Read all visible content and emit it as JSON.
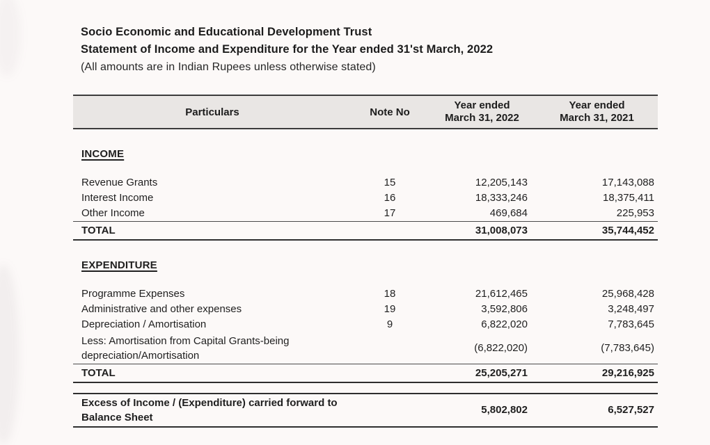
{
  "document": {
    "title": "Socio Economic and Educational Development Trust",
    "subtitle": "Statement of Income and Expenditure for the Year ended 31'st March, 2022",
    "currency_note": "(All amounts are in Indian Rupees unless otherwise stated)"
  },
  "table": {
    "header": {
      "particulars": "Particulars",
      "note_no": "Note No",
      "col_2022": {
        "line1": "Year ended",
        "line2": "March 31, 2022"
      },
      "col_2021": {
        "line1": "Year ended",
        "line2": "March 31, 2021"
      }
    },
    "income": {
      "heading": "INCOME",
      "rows": [
        {
          "label": "Revenue Grants",
          "note": "15",
          "y2022": "12,205,143",
          "y2021": "17,143,088"
        },
        {
          "label": "Interest Income",
          "note": "16",
          "y2022": "18,333,246",
          "y2021": "18,375,411"
        },
        {
          "label": "Other Income",
          "note": "17",
          "y2022": "469,684",
          "y2021": "225,953"
        }
      ],
      "total": {
        "label": "TOTAL",
        "y2022": "31,008,073",
        "y2021": "35,744,452"
      }
    },
    "expenditure": {
      "heading": "EXPENDITURE",
      "rows": [
        {
          "label": "Programme Expenses",
          "note": "18",
          "y2022": "21,612,465",
          "y2021": "25,968,428"
        },
        {
          "label": "Administrative and other expenses",
          "note": "19",
          "y2022": "3,592,806",
          "y2021": "3,248,497"
        },
        {
          "label": "Depreciation / Amortisation",
          "note": "9",
          "y2022": "6,822,020",
          "y2021": "7,783,645"
        }
      ],
      "less_row": {
        "label_line1": "Less: Amortisation from Capital Grants-being",
        "label_line2": "depreciation/Amortisation",
        "y2022": "(6,822,020)",
        "y2021": "(7,783,645)"
      },
      "total": {
        "label": "TOTAL",
        "y2022": "25,205,271",
        "y2021": "29,216,925"
      }
    },
    "excess": {
      "label_line1": "Excess of Income / (Expenditure) carried forward to",
      "label_line2": "Balance Sheet",
      "y2022": "5,802,802",
      "y2021": "6,527,527"
    }
  },
  "colors": {
    "page_bg": "#fcf9f8",
    "header_bg": "#e9e6e4",
    "rule": "#3b3b3b",
    "text": "#1f1f1f"
  }
}
